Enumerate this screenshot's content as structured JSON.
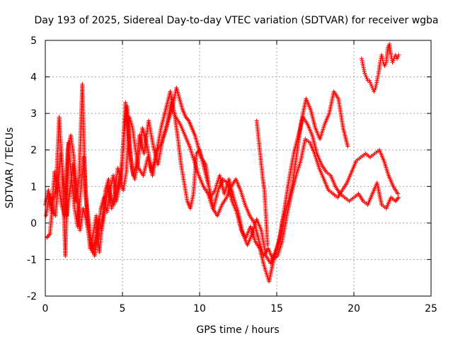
{
  "chart_data": {
    "type": "scatter",
    "title": "Day 193 of 2025, Sidereal Day-to-day VTEC variation (SDTVAR) for receiver wgba",
    "xlabel": "GPS time / hours",
    "ylabel": "SDTVAR / TECUs",
    "xlim": [
      0,
      25
    ],
    "ylim": [
      -2,
      5
    ],
    "xticks": [
      0,
      5,
      10,
      15,
      20,
      25
    ],
    "yticks": [
      -2,
      -1,
      0,
      1,
      2,
      3,
      4,
      5
    ],
    "grid": true,
    "marker": "+",
    "color": "#ff0000",
    "series": [
      {
        "x": [
          0.0,
          0.2,
          0.4,
          0.6,
          0.8,
          1.0,
          1.2,
          1.4,
          1.6,
          1.8,
          2.0,
          2.2,
          2.4,
          2.6,
          2.8,
          3.0,
          3.2,
          3.4,
          3.6,
          3.8,
          4.0,
          4.2,
          4.4,
          4.6,
          4.8,
          5.0,
          5.2,
          5.4,
          5.6,
          5.8,
          6.0,
          6.3,
          6.6,
          6.9,
          7.2,
          7.5,
          7.8,
          8.1,
          8.4,
          8.6,
          8.8,
          9.0,
          9.2,
          9.4,
          9.6,
          9.8,
          10.0,
          10.3,
          10.6,
          10.9,
          11.2,
          11.5,
          11.8,
          12.1,
          12.4,
          12.7,
          13.0,
          13.3,
          13.6,
          13.9,
          14.2,
          14.5,
          14.8,
          15.1,
          15.4,
          15.7,
          16.0,
          16.3,
          16.6,
          16.9,
          17.2,
          17.5,
          17.8,
          18.1,
          18.4,
          18.7,
          19.0,
          19.3,
          19.6
        ],
        "y": [
          0.5,
          0.9,
          0.3,
          1.4,
          0.8,
          1.9,
          1.1,
          0.2,
          0.9,
          1.6,
          0.6,
          1.3,
          3.8,
          0.8,
          0.1,
          -0.6,
          -0.9,
          -0.3,
          0.4,
          0.7,
          0.3,
          0.9,
          1.3,
          0.6,
          1.0,
          1.8,
          3.3,
          2.4,
          1.5,
          1.2,
          1.7,
          2.6,
          2.1,
          1.4,
          1.9,
          2.6,
          3.1,
          3.6,
          2.9,
          2.3,
          1.6,
          1.1,
          0.6,
          0.4,
          0.8,
          1.9,
          2.0,
          1.5,
          1.0,
          0.4,
          0.9,
          1.2,
          1.1,
          0.6,
          0.3,
          -0.2,
          -0.4,
          -0.1,
          -0.5,
          -0.7,
          -1.2,
          -1.6,
          -1.0,
          -0.6,
          0.1,
          0.5,
          1.0,
          1.9,
          2.8,
          3.4,
          3.1,
          2.6,
          2.3,
          2.7,
          3.0,
          3.6,
          3.4,
          2.6,
          2.1
        ]
      },
      {
        "x": [
          0.1,
          0.3,
          0.5,
          0.7,
          0.9,
          1.1,
          1.3,
          1.5,
          1.7,
          1.9,
          2.1,
          2.3,
          2.5,
          2.7,
          2.9,
          3.1,
          3.3,
          3.5,
          3.7,
          3.9,
          4.1,
          4.3,
          4.5,
          4.7,
          4.9,
          5.1,
          5.3,
          5.5,
          5.7,
          5.9,
          6.1,
          6.4,
          6.7,
          7.0,
          7.3,
          7.6,
          7.9,
          8.2,
          8.5,
          8.7,
          8.9,
          9.1,
          9.3,
          9.5,
          9.7,
          9.9,
          10.1,
          10.4,
          10.7,
          11.0,
          11.3,
          11.6,
          11.9,
          12.2,
          12.5,
          12.8,
          13.1,
          13.4,
          13.7,
          14.0,
          14.3,
          14.6,
          14.9,
          15.2,
          15.5,
          15.8,
          16.1,
          16.4,
          16.7,
          17.0,
          17.3,
          17.6,
          17.9,
          18.2,
          18.5,
          18.8,
          19.1,
          19.4,
          19.7,
          20.0,
          20.3,
          20.6,
          20.9,
          21.2,
          21.5,
          21.8,
          22.1,
          22.4,
          22.7,
          22.9
        ],
        "y": [
          -0.4,
          -0.3,
          0.6,
          1.0,
          2.9,
          1.5,
          -0.9,
          2.2,
          1.2,
          0.4,
          -0.1,
          0.9,
          1.8,
          0.3,
          -0.7,
          -0.3,
          0.2,
          -0.8,
          0.1,
          0.9,
          1.2,
          0.4,
          0.8,
          1.5,
          1.2,
          2.4,
          3.2,
          1.9,
          1.3,
          1.6,
          2.4,
          1.9,
          2.8,
          2.1,
          1.6,
          2.3,
          2.7,
          3.1,
          3.7,
          3.4,
          3.1,
          2.9,
          2.8,
          2.6,
          2.4,
          2.1,
          1.8,
          1.6,
          0.7,
          0.9,
          1.3,
          0.8,
          1.2,
          0.7,
          0.3,
          -0.3,
          -0.6,
          -0.3,
          0.1,
          -0.2,
          -0.9,
          -1.1,
          -0.8,
          -0.4,
          0.4,
          1.2,
          1.9,
          2.4,
          2.9,
          2.7,
          2.4,
          1.9,
          1.6,
          1.4,
          1.3,
          1.0,
          0.8,
          0.7,
          0.6,
          0.7,
          0.8,
          0.6,
          0.5,
          0.8,
          1.1,
          0.5,
          0.4,
          0.7,
          0.6,
          0.7
        ]
      },
      {
        "x": [
          0.05,
          0.25,
          0.45,
          0.65,
          0.85,
          1.05,
          1.25,
          1.45,
          1.65,
          1.85,
          2.05,
          2.25,
          2.45,
          2.65,
          2.85,
          3.05,
          3.25,
          3.45,
          3.65,
          3.85,
          4.05,
          4.25,
          4.45,
          4.65,
          4.85,
          5.05,
          5.25,
          5.45,
          5.65,
          5.85,
          6.05,
          6.35,
          6.65,
          6.95,
          7.25,
          7.55,
          7.85,
          8.15,
          8.45,
          8.75,
          9.05,
          9.35,
          9.65,
          9.95,
          10.25,
          10.55,
          10.85,
          11.15,
          11.45,
          11.75,
          12.05,
          12.35,
          12.65,
          12.95,
          13.25,
          13.55,
          13.85,
          14.15,
          14.45,
          14.75,
          15.05,
          15.35,
          15.65,
          15.95,
          16.25,
          16.55,
          16.85,
          17.15,
          17.45,
          17.75,
          18.05,
          18.35,
          18.65,
          18.95,
          19.25,
          19.55,
          19.85,
          20.15,
          20.45,
          20.75,
          21.05,
          21.35,
          21.65,
          21.95,
          22.25,
          22.55,
          22.85
        ],
        "y": [
          0.2,
          0.8,
          0.4,
          0.2,
          1.1,
          0.5,
          0.2,
          2.0,
          2.4,
          1.8,
          0.7,
          -0.2,
          0.4,
          0.1,
          -0.4,
          -0.8,
          -0.4,
          0.1,
          -0.2,
          0.3,
          1.0,
          0.7,
          0.5,
          0.9,
          1.2,
          0.9,
          1.4,
          2.9,
          2.6,
          2.0,
          1.5,
          1.3,
          1.8,
          1.3,
          2.0,
          2.2,
          2.6,
          3.3,
          2.9,
          2.7,
          2.4,
          2.1,
          1.7,
          1.3,
          1.0,
          0.8,
          0.4,
          0.2,
          0.5,
          0.7,
          1.0,
          1.2,
          0.9,
          0.5,
          0.2,
          0.0,
          -0.5,
          -0.9,
          -0.7,
          -1.0,
          -0.9,
          -0.5,
          0.2,
          0.8,
          1.3,
          1.7,
          2.3,
          2.2,
          1.9,
          1.5,
          1.2,
          0.9,
          0.8,
          0.7,
          0.9,
          1.1,
          1.4,
          1.7,
          1.8,
          1.9,
          1.8,
          1.9,
          2.0,
          1.7,
          1.3,
          1.0,
          0.8
        ]
      },
      {
        "x": [
          20.5,
          20.6,
          20.7,
          20.8,
          20.9,
          21.0,
          21.1,
          21.2,
          21.3,
          21.4,
          21.5,
          21.6,
          21.7,
          21.8,
          21.9,
          22.0,
          22.1,
          22.2,
          22.3,
          22.4,
          22.5,
          22.6,
          22.7,
          22.8,
          22.9
        ],
        "y": [
          4.5,
          4.3,
          4.1,
          4.0,
          3.9,
          3.9,
          3.8,
          3.7,
          3.6,
          3.7,
          3.9,
          4.1,
          4.4,
          4.6,
          4.4,
          4.3,
          4.4,
          4.8,
          4.9,
          4.6,
          4.4,
          4.5,
          4.6,
          4.5,
          4.6
        ]
      },
      {
        "x": [
          13.7,
          13.8,
          13.9,
          14.0,
          14.1,
          14.2,
          14.3,
          14.4
        ],
        "y": [
          2.8,
          2.4,
          2.0,
          1.6,
          1.2,
          0.9,
          0.2,
          -0.6
        ]
      }
    ]
  }
}
